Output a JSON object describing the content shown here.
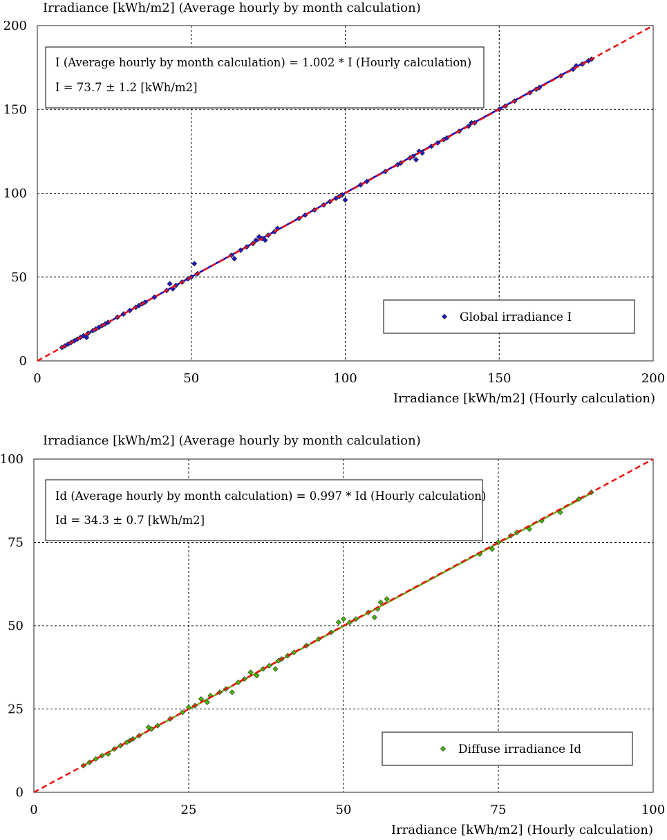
{
  "chart_data": [
    {
      "type": "scatter",
      "ylabel": "Irradiance [kWh/m2] (Average hourly by month calculation)",
      "xlabel": "Irradiance [kWh/m2] (Hourly calculation)",
      "xlim": [
        0,
        200
      ],
      "ylim": [
        0,
        200
      ],
      "xticks": [
        "0",
        "50",
        "100",
        "150",
        "200"
      ],
      "yticks": [
        "0",
        "50",
        "100",
        "150",
        "200"
      ],
      "grid": true,
      "legend": "bottom-right",
      "annotation": [
        "I (Average hourly by month calculation) = 1.002 * I (Hourly calculation)",
        "I = 73.7 ± 1.2 [kWh/m2]"
      ],
      "fit_slope": 1.002,
      "fit_color": "#0000cc",
      "identity_color": "#ee1111",
      "series": [
        {
          "name": "Global irradiance I",
          "marker": "diamond",
          "color": "#1a1acc",
          "x": [
            8,
            9,
            10,
            11,
            12,
            13,
            14,
            15,
            16,
            16.5,
            18,
            19,
            20,
            21,
            22,
            23,
            26,
            28,
            30,
            32,
            33,
            34,
            35,
            38,
            42,
            43,
            44,
            45,
            47,
            49,
            50,
            51,
            52,
            63,
            64,
            66,
            68,
            70,
            71,
            72,
            73,
            74,
            75,
            77,
            78,
            85,
            87,
            90,
            93,
            95,
            97,
            98,
            99,
            100,
            105,
            107,
            113,
            117,
            118,
            121,
            122,
            123,
            124,
            125,
            128,
            130,
            132,
            133,
            137,
            140,
            141,
            142,
            150,
            152,
            155,
            160,
            162,
            163,
            170,
            174,
            175,
            177,
            179,
            180
          ],
          "y": [
            8,
            9,
            10,
            11,
            12,
            13,
            14,
            15,
            14,
            16.5,
            18,
            19,
            20,
            21,
            22,
            23,
            26,
            28,
            30,
            32,
            33,
            34,
            35,
            38,
            42,
            46,
            43,
            45,
            47,
            49,
            50,
            58,
            52,
            63,
            61,
            66,
            68,
            70,
            72,
            74,
            73,
            72,
            75,
            77,
            79,
            85,
            87,
            90,
            93,
            95,
            97,
            98,
            99,
            96,
            105,
            107,
            113,
            117,
            118,
            121,
            122,
            120,
            125,
            124,
            128,
            130,
            132,
            133,
            137,
            140,
            142,
            142,
            150,
            152,
            155,
            160,
            162,
            163,
            170,
            174,
            176,
            177,
            179,
            180
          ]
        }
      ]
    },
    {
      "type": "scatter",
      "ylabel": "Irradiance [kWh/m2] (Average hourly by month calculation)",
      "xlabel": "Irradiance [kWh/m2] (Hourly calculation)",
      "xlim": [
        0,
        100
      ],
      "ylim": [
        0,
        100
      ],
      "xticks": [
        "0",
        "25",
        "50",
        "75",
        "100"
      ],
      "yticks": [
        "0",
        "25",
        "50",
        "75",
        "100"
      ],
      "grid": true,
      "legend": "bottom-right",
      "annotation": [
        "Id (Average hourly by month calculation) = 0.997 * Id (Hourly calculation)",
        "Id = 34.3 ± 0.7 [kWh/m2]"
      ],
      "fit_slope": 0.997,
      "fit_color": "#66aa11",
      "identity_color": "#ee1111",
      "series": [
        {
          "name": "Diffuse irradiance Id",
          "marker": "diamond",
          "color": "#44bb00",
          "x": [
            8,
            9,
            10,
            11,
            12,
            13,
            14,
            15,
            15.5,
            16,
            17,
            18.5,
            19,
            20,
            22,
            24,
            25,
            26,
            27,
            28,
            28.5,
            30,
            31,
            32,
            33,
            34,
            35,
            36,
            37,
            38,
            39,
            39.5,
            40,
            41,
            42,
            44,
            46,
            48,
            49.2,
            50,
            51,
            52,
            54,
            55,
            55.5,
            56,
            57,
            72,
            74,
            75,
            77,
            78,
            80,
            82,
            85,
            88,
            90
          ],
          "y": [
            8,
            9,
            10,
            11,
            11.5,
            13,
            14,
            15,
            15.5,
            16,
            17,
            19.5,
            19,
            20,
            22,
            24,
            25.5,
            26,
            28,
            27,
            29,
            30,
            31,
            30,
            33,
            34,
            36,
            35,
            37,
            38,
            37,
            39.5,
            40,
            41,
            42,
            44,
            46,
            48,
            51,
            52,
            51,
            52,
            54,
            52.5,
            55,
            57,
            58,
            71.5,
            73,
            75,
            77,
            78,
            79,
            81.5,
            84,
            88,
            90
          ]
        }
      ]
    }
  ]
}
